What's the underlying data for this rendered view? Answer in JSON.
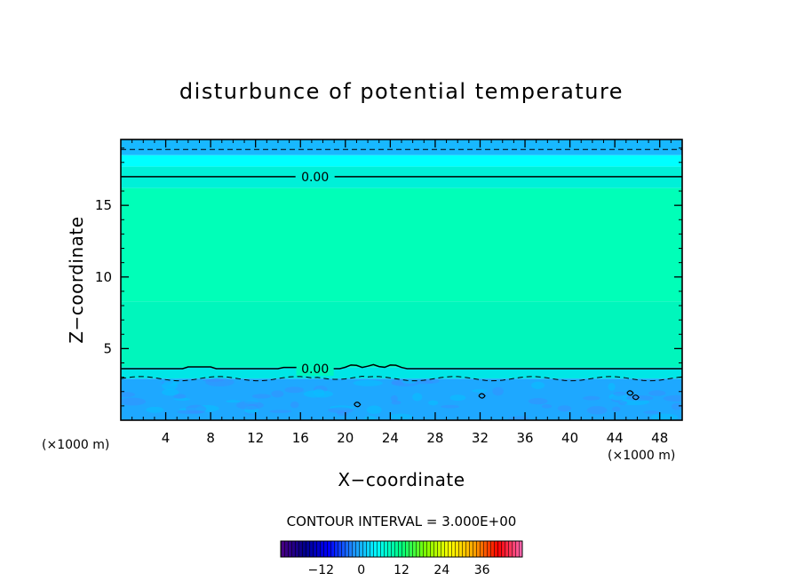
{
  "chart_data": {
    "type": "heatmap",
    "title": "disturbunce of potential temperature",
    "xlabel": "X−coordinate",
    "ylabel": "Z−coordinate",
    "x_unit_label": "(×1000 m)",
    "z_unit_label": "(×1000 m)",
    "xlim": [
      0,
      50
    ],
    "ylim": [
      0,
      19.6
    ],
    "x_ticks": [
      {
        "value": 4,
        "label": "4"
      },
      {
        "value": 8,
        "label": "8"
      },
      {
        "value": 12,
        "label": "12"
      },
      {
        "value": 16,
        "label": "16"
      },
      {
        "value": 20,
        "label": "20"
      },
      {
        "value": 24,
        "label": "24"
      },
      {
        "value": 28,
        "label": "28"
      },
      {
        "value": 32,
        "label": "32"
      },
      {
        "value": 36,
        "label": "36"
      },
      {
        "value": 40,
        "label": "40"
      },
      {
        "value": 44,
        "label": "44"
      },
      {
        "value": 48,
        "label": "48"
      }
    ],
    "y_ticks": [
      {
        "value": 5,
        "label": "5"
      },
      {
        "value": 10,
        "label": "10"
      },
      {
        "value": 15,
        "label": "15"
      }
    ],
    "contour_interval_text": "CONTOUR INTERVAL = 3.000E+00",
    "contour_interval": 3,
    "zero_contours": [
      {
        "z": 17.0,
        "label": "0.00",
        "label_x": 17.3
      },
      {
        "z": 3.6,
        "label": "0.00",
        "label_x": 17.3
      }
    ],
    "dashed_contours": [
      {
        "z": 18.9
      },
      {
        "z": 2.9
      }
    ],
    "field_layers": [
      {
        "z_from": 18.5,
        "z_to": 19.6,
        "value": -2.0,
        "color": "#18b8ff"
      },
      {
        "z_from": 17.7,
        "z_to": 18.5,
        "value": -1.0,
        "color": "#00ffff"
      },
      {
        "z_from": 16.2,
        "z_to": 17.7,
        "value": 0.5,
        "color": "#00f0d8"
      },
      {
        "z_from": 8.3,
        "z_to": 16.2,
        "value": 2.0,
        "color": "#00ffb8"
      },
      {
        "z_from": 3.7,
        "z_to": 8.3,
        "value": 1.5,
        "color": "#00f6bc"
      },
      {
        "z_from": 2.9,
        "z_to": 3.7,
        "value": -1.0,
        "color": "#00e6e6"
      },
      {
        "z_from": 0,
        "z_to": 2.9,
        "value": -3.0,
        "color": "#1ea8ff"
      }
    ],
    "colorbar": {
      "min": -24,
      "max": 48,
      "ticks": [
        {
          "value": -12,
          "label": "−12"
        },
        {
          "value": 0,
          "label": "0"
        },
        {
          "value": 12,
          "label": "12"
        },
        {
          "value": 24,
          "label": "24"
        },
        {
          "value": 36,
          "label": "36"
        }
      ],
      "colors": [
        "#4b0082",
        "#00008b",
        "#0000ff",
        "#1e90ff",
        "#00ffff",
        "#00ff7f",
        "#7fff00",
        "#ffff00",
        "#ffa500",
        "#ff0000",
        "#ff69b4"
      ]
    },
    "legend": "none",
    "grid": false
  }
}
